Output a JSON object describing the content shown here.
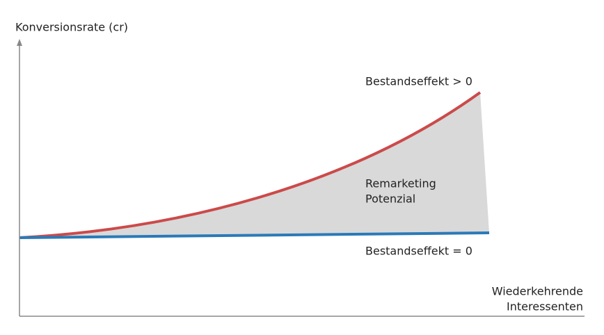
{
  "axes": {
    "y_label": "Konversionsrate (cr)",
    "x_label": [
      "Wiederkehrende",
      "Interessenten"
    ]
  },
  "curves": {
    "upper_label": "Bestandseffekt > 0",
    "lower_label": "Bestandseffekt = 0"
  },
  "area": {
    "label": [
      "Remarketing",
      "Potenzial"
    ]
  }
}
